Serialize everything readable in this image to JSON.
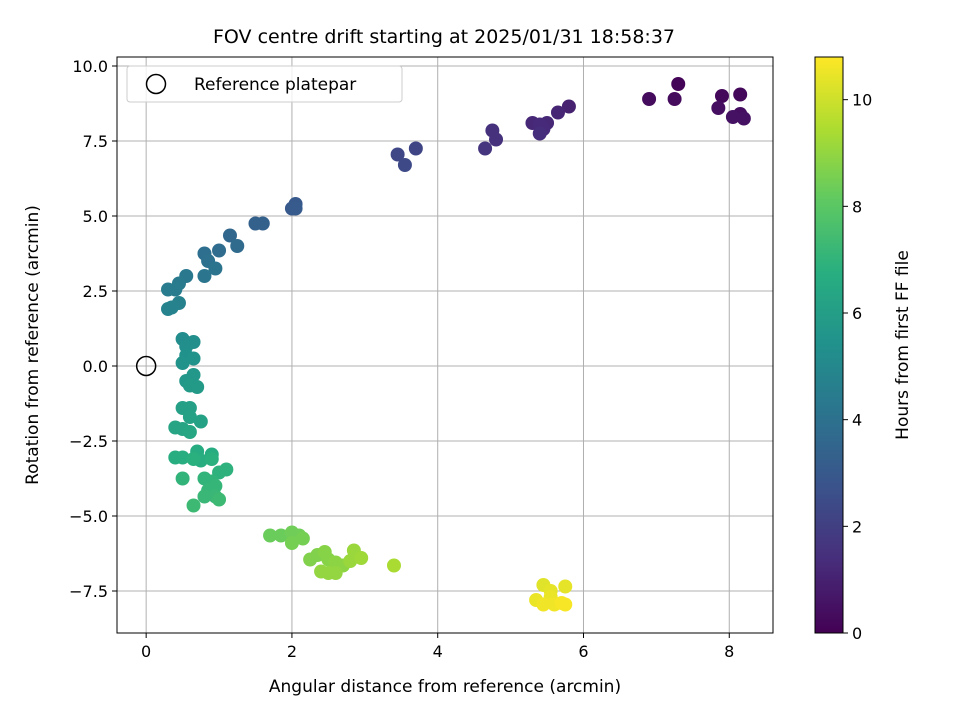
{
  "chart_data": {
    "type": "scatter",
    "title": "FOV centre drift starting at 2025/01/31 18:58:37",
    "xlabel": "Angular distance from reference (arcmin)",
    "ylabel": "Rotation from reference (arcmin)",
    "xlim": [
      -0.4,
      8.6
    ],
    "ylim": [
      -8.9,
      10.3
    ],
    "xticks": [
      0,
      2,
      4,
      6,
      8
    ],
    "xtick_labels": [
      "0",
      "2",
      "4",
      "6",
      "8"
    ],
    "yticks": [
      -7.5,
      -5.0,
      -2.5,
      0.0,
      2.5,
      5.0,
      7.5,
      10.0
    ],
    "ytick_labels": [
      "−7.5",
      "−5.0",
      "−2.5",
      "0.0",
      "2.5",
      "5.0",
      "7.5",
      "10.0"
    ],
    "grid": true,
    "legend": {
      "position": "top-left",
      "entries": [
        "Reference platepar"
      ]
    },
    "reference_point": {
      "x": 0,
      "y": 0,
      "label": "Reference platepar"
    },
    "colorbar": {
      "label": "Hours from first FF file",
      "colormap": "viridis",
      "range": [
        0,
        10.8
      ],
      "ticks": [
        0,
        2,
        4,
        6,
        8,
        10
      ],
      "tick_labels": [
        "0",
        "2",
        "4",
        "6",
        "8",
        "10"
      ]
    },
    "points": [
      {
        "x": 7.3,
        "y": 9.4,
        "c": 0.1
      },
      {
        "x": 8.15,
        "y": 9.05,
        "c": 0.2
      },
      {
        "x": 7.9,
        "y": 9.0,
        "c": 0.2
      },
      {
        "x": 6.9,
        "y": 8.9,
        "c": 0.3
      },
      {
        "x": 7.25,
        "y": 8.9,
        "c": 0.3
      },
      {
        "x": 7.85,
        "y": 8.6,
        "c": 0.4
      },
      {
        "x": 8.15,
        "y": 8.4,
        "c": 0.4
      },
      {
        "x": 8.05,
        "y": 8.3,
        "c": 0.5
      },
      {
        "x": 8.2,
        "y": 8.25,
        "c": 0.5
      },
      {
        "x": 5.8,
        "y": 8.65,
        "c": 1.0
      },
      {
        "x": 5.65,
        "y": 8.45,
        "c": 1.1
      },
      {
        "x": 5.5,
        "y": 8.1,
        "c": 1.2
      },
      {
        "x": 5.3,
        "y": 8.1,
        "c": 1.2
      },
      {
        "x": 5.4,
        "y": 8.05,
        "c": 1.3
      },
      {
        "x": 5.45,
        "y": 7.9,
        "c": 1.3
      },
      {
        "x": 5.4,
        "y": 7.75,
        "c": 1.4
      },
      {
        "x": 4.75,
        "y": 7.85,
        "c": 1.5
      },
      {
        "x": 4.8,
        "y": 7.55,
        "c": 1.5
      },
      {
        "x": 4.65,
        "y": 7.25,
        "c": 1.6
      },
      {
        "x": 3.7,
        "y": 7.25,
        "c": 2.2
      },
      {
        "x": 3.45,
        "y": 7.05,
        "c": 2.3
      },
      {
        "x": 3.55,
        "y": 6.7,
        "c": 2.4
      },
      {
        "x": 2.05,
        "y": 5.4,
        "c": 3.0
      },
      {
        "x": 2.0,
        "y": 5.25,
        "c": 3.0
      },
      {
        "x": 2.05,
        "y": 5.25,
        "c": 3.1
      },
      {
        "x": 1.6,
        "y": 4.75,
        "c": 3.3
      },
      {
        "x": 1.5,
        "y": 4.75,
        "c": 3.3
      },
      {
        "x": 1.15,
        "y": 4.35,
        "c": 3.6
      },
      {
        "x": 1.25,
        "y": 4.0,
        "c": 3.7
      },
      {
        "x": 1.0,
        "y": 3.85,
        "c": 3.8
      },
      {
        "x": 0.8,
        "y": 3.75,
        "c": 3.9
      },
      {
        "x": 0.85,
        "y": 3.5,
        "c": 4.0
      },
      {
        "x": 0.95,
        "y": 3.25,
        "c": 4.1
      },
      {
        "x": 0.8,
        "y": 3.0,
        "c": 4.2
      },
      {
        "x": 0.55,
        "y": 3.0,
        "c": 4.3
      },
      {
        "x": 0.45,
        "y": 2.75,
        "c": 4.4
      },
      {
        "x": 0.4,
        "y": 2.55,
        "c": 4.5
      },
      {
        "x": 0.3,
        "y": 2.55,
        "c": 4.5
      },
      {
        "x": 0.45,
        "y": 2.1,
        "c": 4.7
      },
      {
        "x": 0.35,
        "y": 1.95,
        "c": 4.8
      },
      {
        "x": 0.3,
        "y": 1.9,
        "c": 4.8
      },
      {
        "x": 0.5,
        "y": 0.9,
        "c": 5.2
      },
      {
        "x": 0.65,
        "y": 0.8,
        "c": 5.3
      },
      {
        "x": 0.55,
        "y": 0.65,
        "c": 5.3
      },
      {
        "x": 0.55,
        "y": 0.35,
        "c": 5.4
      },
      {
        "x": 0.65,
        "y": 0.25,
        "c": 5.5
      },
      {
        "x": 0.5,
        "y": 0.1,
        "c": 5.5
      },
      {
        "x": 0.65,
        "y": -0.3,
        "c": 5.7
      },
      {
        "x": 0.55,
        "y": -0.5,
        "c": 5.7
      },
      {
        "x": 0.7,
        "y": -0.7,
        "c": 5.8
      },
      {
        "x": 0.6,
        "y": -0.65,
        "c": 5.8
      },
      {
        "x": 0.5,
        "y": -1.4,
        "c": 6.1
      },
      {
        "x": 0.6,
        "y": -1.4,
        "c": 6.1
      },
      {
        "x": 0.6,
        "y": -1.7,
        "c": 6.2
      },
      {
        "x": 0.75,
        "y": -1.85,
        "c": 6.2
      },
      {
        "x": 0.4,
        "y": -2.05,
        "c": 6.3
      },
      {
        "x": 0.5,
        "y": -2.1,
        "c": 6.3
      },
      {
        "x": 0.6,
        "y": -2.2,
        "c": 6.4
      },
      {
        "x": 0.7,
        "y": -2.85,
        "c": 6.6
      },
      {
        "x": 0.9,
        "y": -2.95,
        "c": 6.6
      },
      {
        "x": 0.4,
        "y": -3.05,
        "c": 6.7
      },
      {
        "x": 0.5,
        "y": -3.05,
        "c": 6.7
      },
      {
        "x": 0.75,
        "y": -3.15,
        "c": 6.7
      },
      {
        "x": 0.65,
        "y": -3.1,
        "c": 6.8
      },
      {
        "x": 0.9,
        "y": -3.1,
        "c": 6.8
      },
      {
        "x": 1.1,
        "y": -3.45,
        "c": 6.9
      },
      {
        "x": 1.0,
        "y": -3.55,
        "c": 6.9
      },
      {
        "x": 0.8,
        "y": -3.75,
        "c": 7.0
      },
      {
        "x": 0.5,
        "y": -3.75,
        "c": 7.0
      },
      {
        "x": 0.9,
        "y": -3.85,
        "c": 7.0
      },
      {
        "x": 0.95,
        "y": -4.0,
        "c": 7.1
      },
      {
        "x": 0.85,
        "y": -4.15,
        "c": 7.1
      },
      {
        "x": 0.8,
        "y": -4.35,
        "c": 7.2
      },
      {
        "x": 0.95,
        "y": -4.35,
        "c": 7.2
      },
      {
        "x": 1.0,
        "y": -4.45,
        "c": 7.3
      },
      {
        "x": 0.65,
        "y": -4.65,
        "c": 7.3
      },
      {
        "x": 1.7,
        "y": -5.65,
        "c": 8.3
      },
      {
        "x": 1.85,
        "y": -5.65,
        "c": 8.3
      },
      {
        "x": 2.0,
        "y": -5.55,
        "c": 8.4
      },
      {
        "x": 2.1,
        "y": -5.65,
        "c": 8.4
      },
      {
        "x": 2.15,
        "y": -5.75,
        "c": 8.5
      },
      {
        "x": 2.0,
        "y": -5.9,
        "c": 8.5
      },
      {
        "x": 2.25,
        "y": -6.45,
        "c": 8.7
      },
      {
        "x": 2.35,
        "y": -6.3,
        "c": 8.7
      },
      {
        "x": 2.45,
        "y": -6.2,
        "c": 8.8
      },
      {
        "x": 2.5,
        "y": -6.45,
        "c": 8.8
      },
      {
        "x": 2.6,
        "y": -6.55,
        "c": 8.9
      },
      {
        "x": 2.7,
        "y": -6.65,
        "c": 8.9
      },
      {
        "x": 2.4,
        "y": -6.85,
        "c": 9.0
      },
      {
        "x": 2.5,
        "y": -6.9,
        "c": 9.0
      },
      {
        "x": 2.6,
        "y": -6.9,
        "c": 9.0
      },
      {
        "x": 2.85,
        "y": -6.15,
        "c": 9.1
      },
      {
        "x": 2.8,
        "y": -6.5,
        "c": 9.1
      },
      {
        "x": 2.95,
        "y": -6.4,
        "c": 9.2
      },
      {
        "x": 3.4,
        "y": -6.65,
        "c": 9.4
      },
      {
        "x": 5.45,
        "y": -7.3,
        "c": 10.3
      },
      {
        "x": 5.55,
        "y": -7.5,
        "c": 10.4
      },
      {
        "x": 5.75,
        "y": -7.35,
        "c": 10.4
      },
      {
        "x": 5.35,
        "y": -7.8,
        "c": 10.5
      },
      {
        "x": 5.55,
        "y": -7.7,
        "c": 10.5
      },
      {
        "x": 5.45,
        "y": -7.95,
        "c": 10.6
      },
      {
        "x": 5.6,
        "y": -7.95,
        "c": 10.6
      },
      {
        "x": 5.7,
        "y": -7.9,
        "c": 10.7
      },
      {
        "x": 5.75,
        "y": -7.95,
        "c": 10.7
      }
    ]
  }
}
